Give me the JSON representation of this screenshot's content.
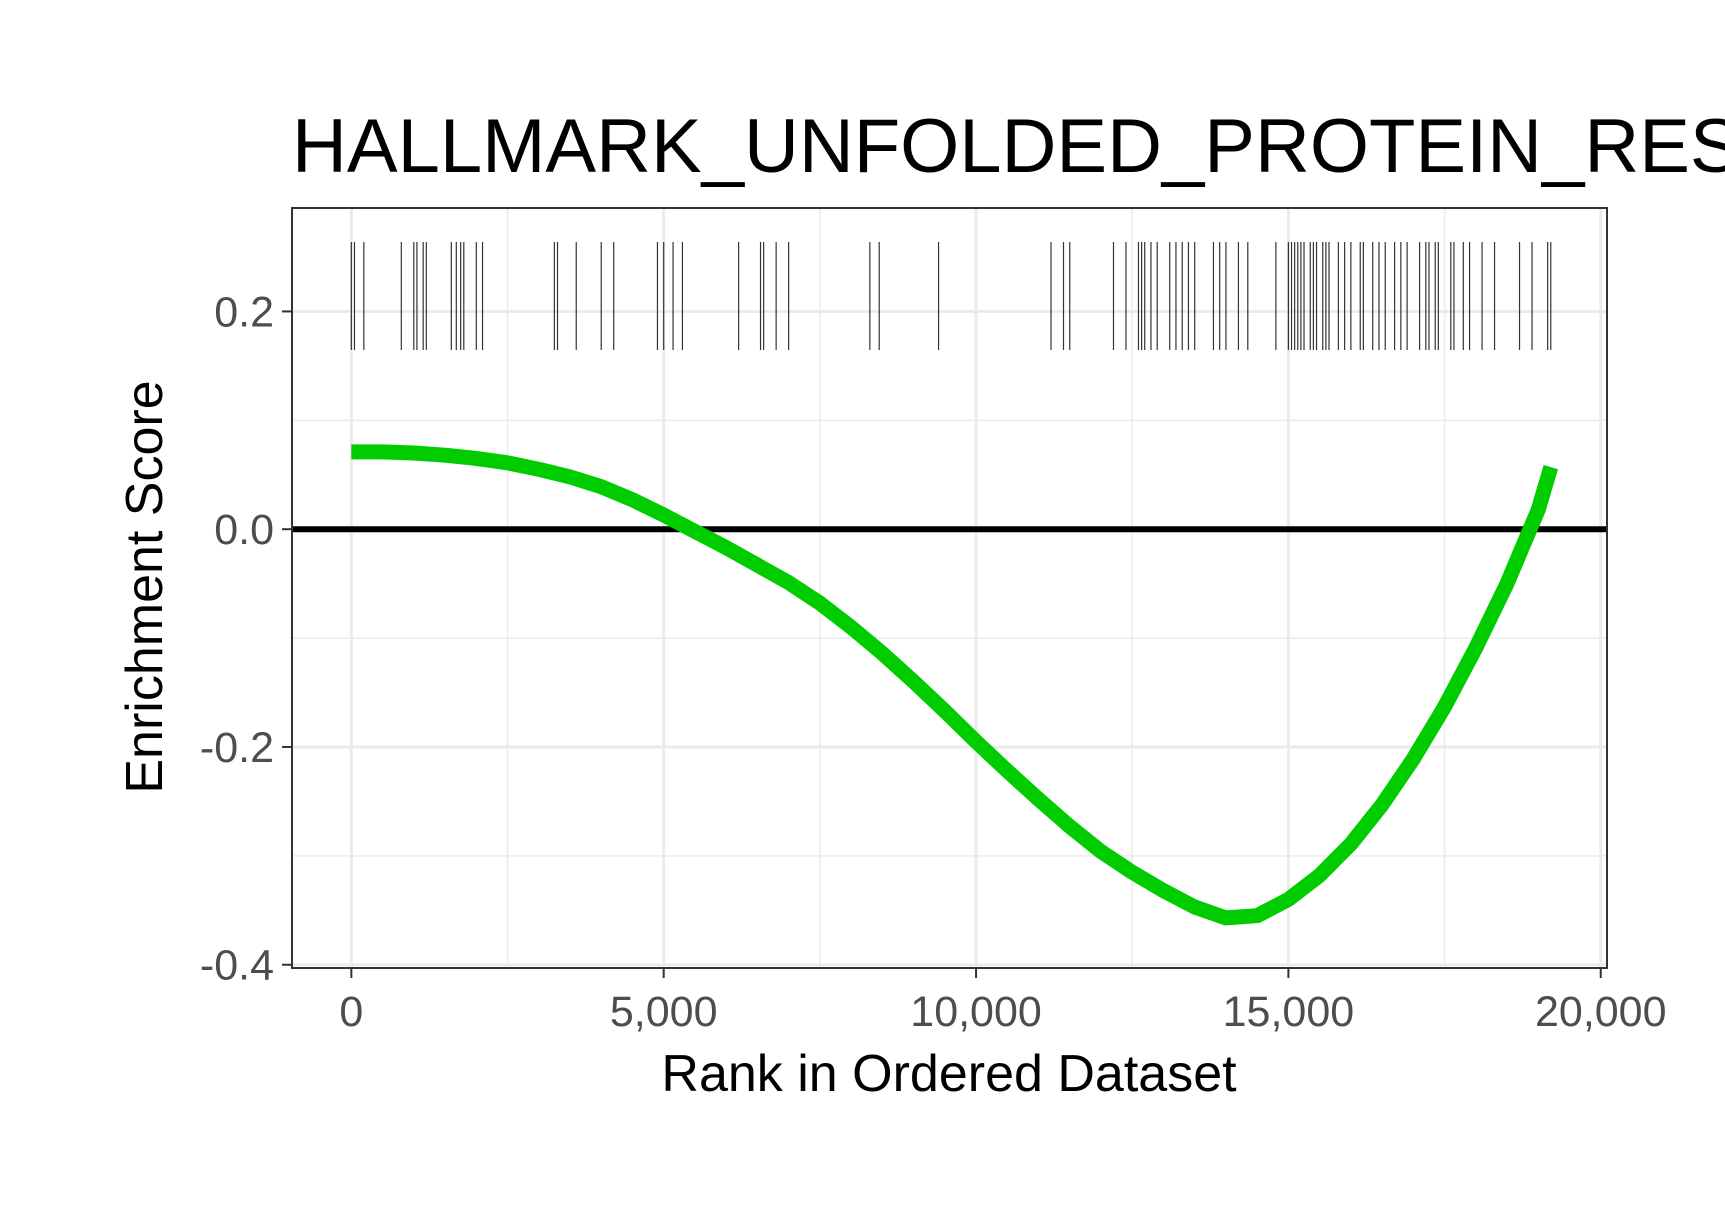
{
  "chart_data": {
    "type": "line",
    "title": "HALLMARK_UNFOLDED_PROTEIN_RESPONSE",
    "xlabel": "Rank in Ordered Dataset",
    "ylabel": "Enrichment Score",
    "xlim": [
      -950,
      20100
    ],
    "ylim": [
      -0.403,
      0.295
    ],
    "x_ticks": [
      0,
      5000,
      10000,
      15000,
      20000
    ],
    "x_tick_labels": [
      "0",
      "5,000",
      "10,000",
      "15,000",
      "20,000"
    ],
    "y_ticks": [
      -0.4,
      -0.2,
      0.0,
      0.2
    ],
    "y_tick_labels": [
      "-0.4",
      "-0.2",
      "0.0",
      "0.2"
    ],
    "grid": true,
    "reference_line_y": 0,
    "series": [
      {
        "color": "#00CC00",
        "x": [
          0,
          500,
          1000,
          1500,
          2000,
          2500,
          3000,
          3500,
          4000,
          4500,
          5000,
          5500,
          6000,
          6500,
          7000,
          7500,
          8000,
          8500,
          9000,
          9500,
          10000,
          10500,
          11000,
          11500,
          12000,
          12500,
          13000,
          13500,
          14000,
          14500,
          15000,
          15500,
          16000,
          16500,
          17000,
          17500,
          18000,
          18500,
          19000,
          19200
        ],
        "y": [
          0.071,
          0.071,
          0.07,
          0.068,
          0.065,
          0.061,
          0.055,
          0.048,
          0.039,
          0.027,
          0.013,
          -0.002,
          -0.017,
          -0.033,
          -0.049,
          -0.068,
          -0.09,
          -0.114,
          -0.14,
          -0.167,
          -0.195,
          -0.222,
          -0.248,
          -0.273,
          -0.296,
          -0.315,
          -0.332,
          -0.347,
          -0.357,
          -0.355,
          -0.34,
          -0.318,
          -0.289,
          -0.253,
          -0.211,
          -0.163,
          -0.109,
          -0.05,
          0.018,
          0.057
        ]
      }
    ],
    "gene_hits": [
      0,
      50,
      200,
      800,
      1000,
      1050,
      1150,
      1200,
      1600,
      1680,
      1750,
      1800,
      2000,
      2100,
      3250,
      3300,
      3600,
      4000,
      4200,
      4900,
      5000,
      5150,
      5300,
      6200,
      6550,
      6600,
      6800,
      7000,
      8300,
      8450,
      9400,
      11200,
      11400,
      11500,
      12200,
      12400,
      12600,
      12650,
      12700,
      12800,
      12900,
      13100,
      13200,
      13300,
      13400,
      13500,
      13800,
      13900,
      14000,
      14200,
      14350,
      14800,
      15000,
      15050,
      15100,
      15150,
      15200,
      15250,
      15350,
      15400,
      15450,
      15550,
      15600,
      15650,
      15800,
      15900,
      16000,
      16150,
      16200,
      16350,
      16450,
      16550,
      16700,
      16800,
      16900,
      17100,
      17200,
      17250,
      17350,
      17400,
      17600,
      17650,
      17800,
      17900,
      18100,
      18300,
      18700,
      18900,
      19150,
      19200
    ]
  }
}
